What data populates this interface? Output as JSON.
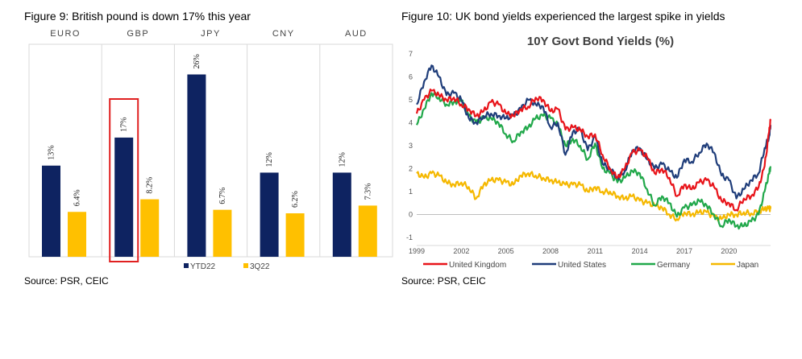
{
  "fig9": {
    "title": "Figure 9:   British pound is down 17% this year",
    "source": "Source: PSR, CEIC"
  },
  "fig10": {
    "title": "Figure 10:   UK bond yields experienced the largest spike in yields",
    "source": "Source: PSR, CEIC"
  },
  "chart_data": [
    {
      "type": "bar",
      "categories": [
        "EURO",
        "GBP",
        "JPY",
        "CNY",
        "AUD"
      ],
      "series": [
        {
          "name": "YTD22",
          "color": "#0e2361",
          "values": [
            13,
            17,
            26,
            12,
            12
          ],
          "labels": [
            "13%",
            "17%",
            "26%",
            "12%",
            "12%"
          ]
        },
        {
          "name": "3Q22",
          "color": "#ffc000",
          "values": [
            6.4,
            8.2,
            6.7,
            6.2,
            7.3
          ],
          "labels": [
            "6.4%",
            "8.2%",
            "6.7%",
            "6.2%",
            "7.3%"
          ]
        }
      ],
      "highlight": {
        "category": "GBP",
        "series": "YTD22",
        "color": "#e02020"
      },
      "ylim": [
        0,
        30
      ],
      "grid": false,
      "legend": "bottom"
    },
    {
      "type": "line",
      "title": "10Y Govt Bond Yields (%)",
      "ylim": [
        -1,
        7
      ],
      "yticks": [
        -1,
        0,
        1,
        2,
        3,
        4,
        5,
        6,
        7
      ],
      "xticks": [
        "1999",
        "2002",
        "2005",
        "2008",
        "2011",
        "2014",
        "2017",
        "2020"
      ],
      "xrange": [
        1999,
        2022.8
      ],
      "legend": "bottom",
      "series": [
        {
          "name": "United Kingdom",
          "color": "#e8141a",
          "x": [
            1999,
            1999.5,
            2000,
            2000.5,
            2001,
            2001.5,
            2002,
            2002.5,
            2003,
            2003.5,
            2004,
            2004.5,
            2005,
            2005.5,
            2006,
            2006.5,
            2007,
            2007.5,
            2008,
            2008.5,
            2009,
            2009.5,
            2010,
            2010.5,
            2011,
            2011.5,
            2012,
            2012.5,
            2013,
            2013.5,
            2014,
            2014.5,
            2015,
            2015.5,
            2016,
            2016.5,
            2017,
            2017.5,
            2018,
            2018.5,
            2019,
            2019.5,
            2020,
            2020.5,
            2021,
            2021.5,
            2022,
            2022.4,
            2022.7,
            2022.8
          ],
          "y": [
            4.4,
            5.0,
            5.4,
            5.2,
            5.0,
            5.1,
            4.8,
            4.6,
            4.3,
            4.5,
            4.9,
            4.8,
            4.4,
            4.3,
            4.6,
            4.7,
            5.1,
            5.0,
            4.5,
            4.6,
            3.7,
            3.8,
            3.7,
            3.4,
            3.5,
            2.6,
            2.0,
            1.6,
            2.0,
            2.7,
            2.8,
            2.5,
            1.8,
            2.0,
            1.6,
            0.8,
            1.3,
            1.1,
            1.4,
            1.5,
            1.2,
            0.6,
            0.5,
            0.2,
            0.7,
            0.8,
            1.2,
            2.1,
            3.6,
            4.1
          ]
        },
        {
          "name": "United States",
          "color": "#1f3d7a",
          "x": [
            1999,
            1999.5,
            2000,
            2000.5,
            2001,
            2001.5,
            2002,
            2002.5,
            2003,
            2003.5,
            2004,
            2004.5,
            2005,
            2005.5,
            2006,
            2006.5,
            2007,
            2007.5,
            2008,
            2008.5,
            2009,
            2009.5,
            2010,
            2010.5,
            2011,
            2011.5,
            2012,
            2012.5,
            2013,
            2013.5,
            2014,
            2014.5,
            2015,
            2015.5,
            2016,
            2016.5,
            2017,
            2017.5,
            2018,
            2018.5,
            2019,
            2019.5,
            2020,
            2020.5,
            2021,
            2021.5,
            2022,
            2022.4,
            2022.7,
            2022.8
          ],
          "y": [
            4.8,
            5.8,
            6.5,
            6.0,
            5.2,
            5.3,
            5.0,
            4.2,
            4.0,
            4.3,
            4.4,
            4.3,
            4.2,
            4.3,
            4.6,
            5.0,
            4.8,
            4.7,
            3.8,
            4.0,
            2.6,
            3.6,
            3.7,
            2.8,
            3.4,
            2.2,
            2.0,
            1.6,
            1.9,
            2.8,
            2.9,
            2.4,
            2.0,
            2.2,
            1.9,
            1.6,
            2.4,
            2.3,
            2.7,
            3.1,
            2.7,
            1.7,
            1.5,
            0.7,
            1.1,
            1.5,
            1.8,
            2.9,
            3.4,
            3.9
          ]
        },
        {
          "name": "Germany",
          "color": "#21a84a",
          "x": [
            1999,
            1999.5,
            2000,
            2000.5,
            2001,
            2001.5,
            2002,
            2002.5,
            2003,
            2003.5,
            2004,
            2004.5,
            2005,
            2005.5,
            2006,
            2006.5,
            2007,
            2007.5,
            2008,
            2008.5,
            2009,
            2009.5,
            2010,
            2010.5,
            2011,
            2011.5,
            2012,
            2012.5,
            2013,
            2013.5,
            2014,
            2014.5,
            2015,
            2015.5,
            2016,
            2016.5,
            2017,
            2017.5,
            2018,
            2018.5,
            2019,
            2019.5,
            2020,
            2020.5,
            2021,
            2021.5,
            2022,
            2022.4,
            2022.7,
            2022.8
          ],
          "y": [
            3.9,
            4.6,
            5.3,
            5.1,
            4.8,
            4.9,
            5.0,
            4.3,
            4.0,
            4.2,
            4.2,
            4.0,
            3.5,
            3.2,
            3.6,
            3.8,
            4.2,
            4.3,
            4.2,
            3.9,
            3.0,
            3.3,
            3.0,
            2.4,
            3.1,
            2.0,
            1.8,
            1.4,
            1.6,
            1.9,
            1.8,
            1.1,
            0.4,
            0.8,
            0.5,
            -0.1,
            0.3,
            0.4,
            0.6,
            0.4,
            0.0,
            -0.5,
            -0.2,
            -0.5,
            -0.5,
            -0.3,
            0.0,
            1.0,
            1.8,
            2.1
          ]
        },
        {
          "name": "Japan",
          "color": "#f5b800",
          "x": [
            1999,
            1999.5,
            2000,
            2000.5,
            2001,
            2001.5,
            2002,
            2002.5,
            2003,
            2003.5,
            2004,
            2004.5,
            2005,
            2005.5,
            2006,
            2006.5,
            2007,
            2007.5,
            2008,
            2008.5,
            2009,
            2009.5,
            2010,
            2010.5,
            2011,
            2011.5,
            2012,
            2012.5,
            2013,
            2013.5,
            2014,
            2014.5,
            2015,
            2015.5,
            2016,
            2016.5,
            2017,
            2017.5,
            2018,
            2018.5,
            2019,
            2019.5,
            2020,
            2020.5,
            2021,
            2021.5,
            2022,
            2022.4,
            2022.7,
            2022.8
          ],
          "y": [
            1.8,
            1.6,
            1.8,
            1.7,
            1.4,
            1.3,
            1.4,
            1.2,
            0.7,
            1.3,
            1.5,
            1.5,
            1.4,
            1.3,
            1.7,
            1.8,
            1.7,
            1.6,
            1.5,
            1.4,
            1.3,
            1.3,
            1.3,
            1.0,
            1.2,
            1.0,
            1.0,
            0.8,
            0.7,
            0.8,
            0.6,
            0.5,
            0.4,
            0.3,
            0.0,
            -0.2,
            0.1,
            0.0,
            0.1,
            0.1,
            -0.1,
            -0.2,
            0.0,
            0.0,
            0.1,
            0.05,
            0.15,
            0.25,
            0.25,
            0.25
          ]
        }
      ]
    }
  ]
}
